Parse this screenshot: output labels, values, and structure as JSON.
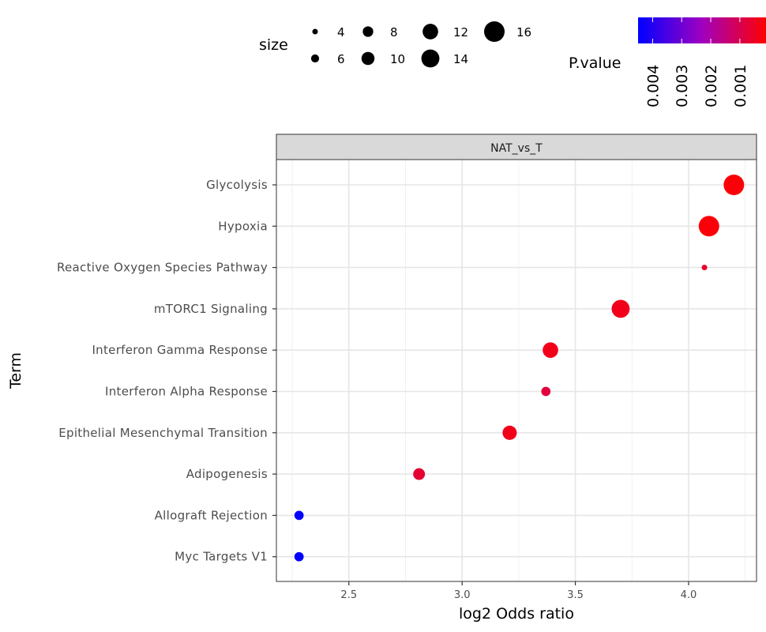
{
  "chart_data": {
    "type": "scatter",
    "facet": "NAT_vs_T",
    "xlabel": "log2 Odds ratio",
    "ylabel": "Term",
    "xlim": [
      2.18,
      4.3
    ],
    "x_ticks": [
      "2.5",
      "3.0",
      "3.5",
      "4.0"
    ],
    "grid": true,
    "terms": [
      "Glycolysis",
      "Hypoxia",
      "Reactive Oxygen Species Pathway",
      "mTORC1 Signaling",
      "Interferon Gamma Response",
      "Interferon Alpha Response",
      "Epithelial Mesenchymal Transition",
      "Adipogenesis",
      "Allograft Rejection",
      "Myc Targets V1"
    ],
    "points": [
      {
        "term": "Glycolysis",
        "x": 4.2,
        "size": 16,
        "p": 0.0002
      },
      {
        "term": "Hypoxia",
        "x": 4.09,
        "size": 16,
        "p": 0.0002
      },
      {
        "term": "Reactive Oxygen Species Pathway",
        "x": 4.07,
        "size": 4,
        "p": 0.0006
      },
      {
        "term": "mTORC1 Signaling",
        "x": 3.7,
        "size": 14,
        "p": 0.0004
      },
      {
        "term": "Interferon Gamma Response",
        "x": 3.39,
        "size": 12,
        "p": 0.0004
      },
      {
        "term": "Interferon Alpha Response",
        "x": 3.37,
        "size": 7,
        "p": 0.0008
      },
      {
        "term": "Epithelial Mesenchymal Transition",
        "x": 3.21,
        "size": 11,
        "p": 0.0004
      },
      {
        "term": "Adipogenesis",
        "x": 2.81,
        "size": 9,
        "p": 0.0007
      },
      {
        "term": "Allograft Rejection",
        "x": 2.28,
        "size": 7,
        "p": 0.0045
      },
      {
        "term": "Myc Targets V1",
        "x": 2.28,
        "size": 7,
        "p": 0.0045
      }
    ],
    "size_legend": {
      "title": "size",
      "values": [
        4,
        8,
        12,
        16,
        6,
        10,
        14
      ],
      "labels": [
        "4",
        "8",
        "12",
        "16",
        "6",
        "10",
        "14"
      ]
    },
    "color_legend": {
      "title": "P.value",
      "low_color": "#ff0000",
      "high_color": "#0000ff",
      "range": [
        0.0001,
        0.0045
      ],
      "labels": [
        "0.004",
        "0.003",
        "0.002",
        "0.001"
      ],
      "values": [
        0.004,
        0.003,
        0.002,
        0.001
      ]
    }
  }
}
